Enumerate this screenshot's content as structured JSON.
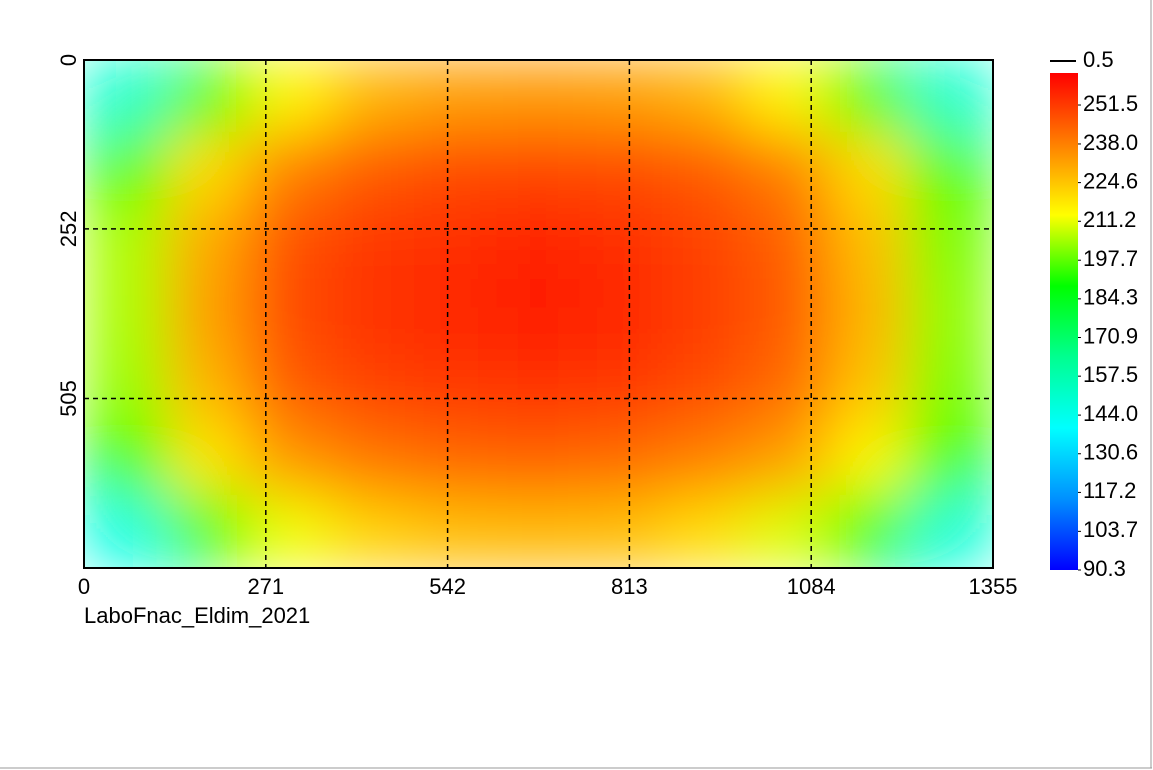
{
  "chart_data": {
    "type": "heatmap",
    "subtitle": "LaboFnac_Eldim_2021",
    "xlim": [
      0,
      1355
    ],
    "xticks": [
      0,
      271,
      542,
      813,
      1084,
      1355
    ],
    "ylim": [
      0,
      758
    ],
    "yticks": [
      0,
      252,
      505
    ],
    "y_inverted": true,
    "grid": true,
    "values": [
      [
        150,
        195,
        215,
        228,
        232,
        233,
        232,
        228,
        215,
        195,
        150
      ],
      [
        195,
        220,
        238,
        245,
        248,
        249,
        248,
        245,
        238,
        220,
        195
      ],
      [
        205,
        230,
        247,
        252,
        254,
        256,
        254,
        250,
        244,
        226,
        200
      ],
      [
        205,
        232,
        248,
        253,
        255,
        257,
        255,
        251,
        245,
        228,
        202
      ],
      [
        203,
        228,
        245,
        250,
        252,
        253,
        252,
        248,
        242,
        225,
        200
      ],
      [
        192,
        218,
        234,
        240,
        243,
        244,
        242,
        238,
        232,
        215,
        192
      ],
      [
        145,
        192,
        212,
        222,
        226,
        227,
        226,
        220,
        210,
        190,
        148
      ]
    ],
    "clim": [
      90.3,
      262.6
    ],
    "colors": [
      "#0000ff",
      "#0090ff",
      "#00ffff",
      "#00ff90",
      "#00ff00",
      "#ffff00",
      "#ff8000",
      "#ff0000"
    ],
    "colorbar_ticks": [
      90.3,
      103.7,
      117.2,
      130.6,
      {
        "value": 144,
        "label": "144.0"
      },
      157.5,
      170.9,
      184.3,
      197.7,
      211.2,
      224.6,
      {
        "value": 238,
        "label": "238.0"
      },
      251.5
    ],
    "marker_label": 0.5
  }
}
